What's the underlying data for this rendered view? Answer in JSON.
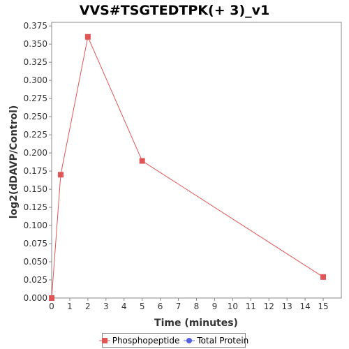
{
  "chart_data": {
    "type": "line",
    "title": "VVS#TSGTEDTPK(+ 3)_v1",
    "xlabel": "Time (minutes)",
    "ylabel": "log2(dDAVP/Control)",
    "xlim": [
      0,
      16
    ],
    "ylim": [
      0,
      0.38
    ],
    "x_ticks": [
      "0",
      "1",
      "2",
      "3",
      "4",
      "5",
      "6",
      "7",
      "8",
      "9",
      "10",
      "11",
      "12",
      "13",
      "14",
      "15"
    ],
    "y_ticks": [
      "0.000",
      "0.025",
      "0.050",
      "0.075",
      "0.100",
      "0.125",
      "0.150",
      "0.175",
      "0.200",
      "0.225",
      "0.250",
      "0.275",
      "0.300",
      "0.325",
      "0.350",
      "0.375"
    ],
    "grid": false,
    "legend_position": "bottom",
    "series": [
      {
        "name": "Phosphopeptide",
        "color": "#e05555",
        "marker": "square",
        "x": [
          0,
          0.5,
          2,
          5,
          15
        ],
        "y": [
          0.0,
          0.17,
          0.36,
          0.189,
          0.029
        ]
      },
      {
        "name": "Total Protein",
        "color": "#5560e0",
        "marker": "circle",
        "x": [],
        "y": []
      }
    ]
  }
}
